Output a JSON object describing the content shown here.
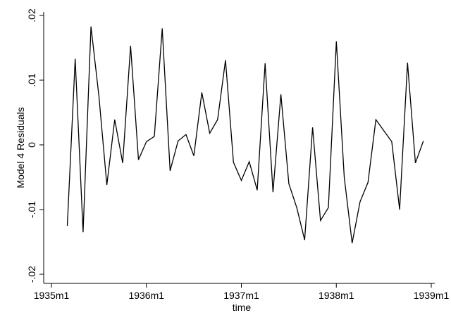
{
  "chart_data": {
    "type": "line",
    "xlabel": "time",
    "ylabel": "Model 4 Residuals",
    "x_start": "1935m3",
    "x_tick_labels": [
      "1935m1",
      "1936m1",
      "1937m1",
      "1938m1",
      "1939m1"
    ],
    "x_tick_months": [
      0,
      12,
      24,
      36,
      48
    ],
    "xlim": [
      "1935m1",
      "1939m1"
    ],
    "y_tick_labels": [
      "-.02",
      "-.01",
      "0",
      ".01",
      ".02"
    ],
    "y_tick_values": [
      -0.02,
      -0.01,
      0,
      0.01,
      0.02
    ],
    "ylim": [
      -0.02,
      0.02
    ],
    "grid": false,
    "series": [
      {
        "values": [
          -0.0125,
          0.0133,
          -0.0135,
          0.0183,
          0.0075,
          -0.0062,
          0.0039,
          -0.0028,
          0.0153,
          -0.0023,
          0.0005,
          0.0013,
          0.018,
          -0.004,
          0.0006,
          0.0016,
          -0.0017,
          0.0081,
          0.0018,
          0.0039,
          0.0131,
          -0.0027,
          -0.0055,
          -0.0026,
          -0.007,
          0.0126,
          -0.0073,
          0.0078,
          -0.006,
          -0.0097,
          -0.0147,
          0.0027,
          -0.0117,
          -0.0097,
          0.016,
          -0.005,
          -0.0152,
          -0.0088,
          -0.0058,
          0.0039,
          0.0022,
          0.0005,
          -0.01,
          0.0127,
          -0.0028,
          0.0006
        ]
      }
    ]
  }
}
